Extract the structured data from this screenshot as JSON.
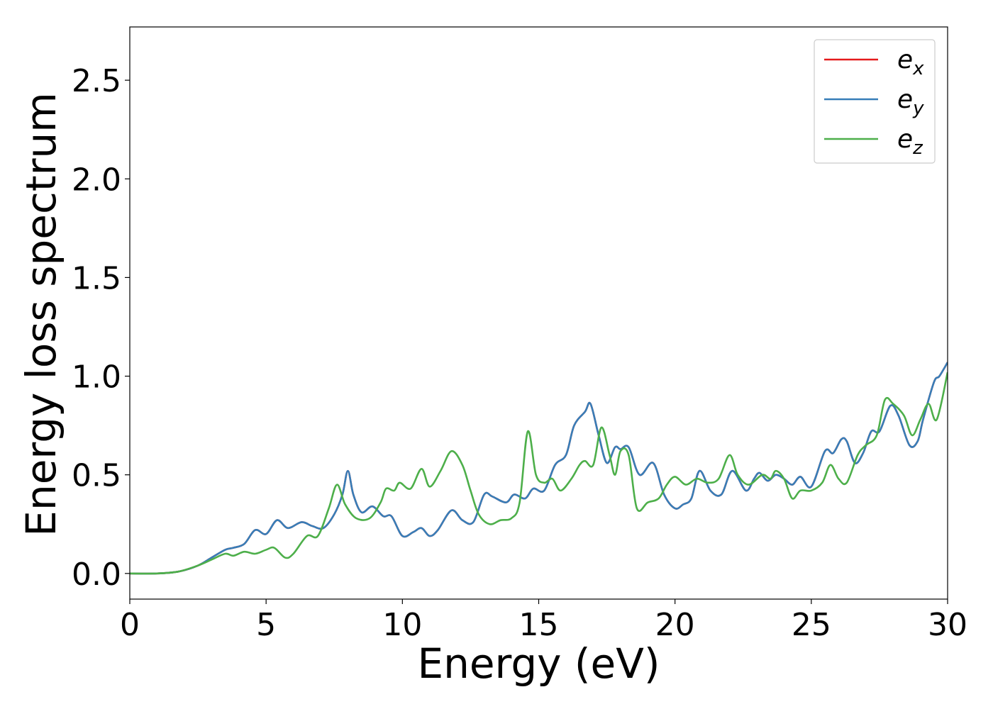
{
  "chart_data": {
    "type": "line",
    "xlabel": "Energy (eV)",
    "ylabel": "Energy loss spectrum",
    "xlim": [
      0,
      30
    ],
    "ylim": [
      -0.13,
      2.77
    ],
    "xticks": [
      0,
      5,
      10,
      15,
      20,
      25,
      30
    ],
    "xtick_labels": [
      "0",
      "5",
      "10",
      "15",
      "20",
      "25",
      "30"
    ],
    "yticks": [
      0.0,
      0.5,
      1.0,
      1.5,
      2.0,
      2.5
    ],
    "ytick_labels": [
      "0.0",
      "0.5",
      "1.0",
      "1.5",
      "2.0",
      "2.5"
    ],
    "grid": false,
    "legend_position": "top-right",
    "series": [
      {
        "name": "e_x",
        "label_base": "e",
        "label_sub": "x",
        "color": "#e41a1c",
        "x": [
          0,
          1,
          1.8,
          2.5,
          3,
          3.5,
          3.8,
          4.2,
          4.6,
          5,
          5.4,
          5.8,
          6.3,
          6.7,
          7.1,
          7.5,
          7.8,
          8,
          8.2,
          8.5,
          8.9,
          9.3,
          9.6,
          10,
          10.4,
          10.7,
          11,
          11.3,
          11.8,
          12.2,
          12.6,
          13,
          13.3,
          13.8,
          14.1,
          14.5,
          14.8,
          15.2,
          15.6,
          16,
          16.3,
          16.7,
          16.9,
          17.2,
          17.5,
          17.8,
          18,
          18.3,
          18.7,
          19.2,
          19.6,
          20,
          20.3,
          20.6,
          20.9,
          21.3,
          21.7,
          22.1,
          22.6,
          22.9,
          23.1,
          23.4,
          23.7,
          24,
          24.3,
          24.6,
          25,
          25.5,
          25.8,
          26.1,
          26.3,
          26.6,
          26.9,
          27.2,
          27.5,
          27.9,
          28.2,
          28.6,
          28.9,
          29.1,
          29.5,
          29.7,
          30
        ],
        "y": [
          0,
          0,
          0.01,
          0.04,
          0.08,
          0.12,
          0.13,
          0.15,
          0.22,
          0.2,
          0.27,
          0.23,
          0.26,
          0.24,
          0.23,
          0.3,
          0.4,
          0.52,
          0.4,
          0.31,
          0.34,
          0.29,
          0.29,
          0.19,
          0.21,
          0.23,
          0.19,
          0.22,
          0.32,
          0.27,
          0.26,
          0.4,
          0.39,
          0.36,
          0.4,
          0.38,
          0.43,
          0.42,
          0.55,
          0.6,
          0.75,
          0.82,
          0.86,
          0.7,
          0.56,
          0.64,
          0.63,
          0.64,
          0.5,
          0.56,
          0.4,
          0.33,
          0.35,
          0.38,
          0.52,
          0.42,
          0.4,
          0.52,
          0.42,
          0.48,
          0.51,
          0.47,
          0.5,
          0.48,
          0.45,
          0.49,
          0.44,
          0.62,
          0.61,
          0.68,
          0.67,
          0.56,
          0.61,
          0.72,
          0.72,
          0.85,
          0.8,
          0.65,
          0.67,
          0.78,
          0.97,
          1.0,
          1.07
        ]
      },
      {
        "name": "e_y",
        "label_base": "e",
        "label_sub": "y",
        "color": "#377eb8",
        "x": [
          0,
          1,
          1.8,
          2.5,
          3,
          3.5,
          3.8,
          4.2,
          4.6,
          5,
          5.4,
          5.8,
          6.3,
          6.7,
          7.1,
          7.5,
          7.8,
          8,
          8.2,
          8.5,
          8.9,
          9.3,
          9.6,
          10,
          10.4,
          10.7,
          11,
          11.3,
          11.8,
          12.2,
          12.6,
          13,
          13.3,
          13.8,
          14.1,
          14.5,
          14.8,
          15.2,
          15.6,
          16,
          16.3,
          16.7,
          16.9,
          17.2,
          17.5,
          17.8,
          18,
          18.3,
          18.7,
          19.2,
          19.6,
          20,
          20.3,
          20.6,
          20.9,
          21.3,
          21.7,
          22.1,
          22.6,
          22.9,
          23.1,
          23.4,
          23.7,
          24,
          24.3,
          24.6,
          25,
          25.5,
          25.8,
          26.1,
          26.3,
          26.6,
          26.9,
          27.2,
          27.5,
          27.9,
          28.2,
          28.6,
          28.9,
          29.1,
          29.5,
          29.7,
          30
        ],
        "y": [
          0,
          0,
          0.01,
          0.04,
          0.08,
          0.12,
          0.13,
          0.15,
          0.22,
          0.2,
          0.27,
          0.23,
          0.26,
          0.24,
          0.23,
          0.3,
          0.4,
          0.52,
          0.4,
          0.31,
          0.34,
          0.29,
          0.29,
          0.19,
          0.21,
          0.23,
          0.19,
          0.22,
          0.32,
          0.27,
          0.26,
          0.4,
          0.39,
          0.36,
          0.4,
          0.38,
          0.43,
          0.42,
          0.55,
          0.6,
          0.75,
          0.82,
          0.86,
          0.7,
          0.56,
          0.64,
          0.63,
          0.64,
          0.5,
          0.56,
          0.4,
          0.33,
          0.35,
          0.38,
          0.52,
          0.42,
          0.4,
          0.52,
          0.42,
          0.48,
          0.51,
          0.47,
          0.5,
          0.48,
          0.45,
          0.49,
          0.44,
          0.62,
          0.61,
          0.68,
          0.67,
          0.56,
          0.61,
          0.72,
          0.72,
          0.85,
          0.8,
          0.65,
          0.67,
          0.78,
          0.97,
          1.0,
          1.07
        ]
      },
      {
        "name": "e_z",
        "label_base": "e",
        "label_sub": "z",
        "color": "#4daf4a",
        "x": [
          0,
          1,
          1.8,
          2.5,
          3,
          3.5,
          3.8,
          4.2,
          4.6,
          5,
          5.3,
          5.7,
          6,
          6.5,
          6.9,
          7.3,
          7.6,
          7.9,
          8.3,
          8.8,
          9.2,
          9.4,
          9.7,
          9.9,
          10.3,
          10.7,
          11,
          11.4,
          11.8,
          12.2,
          12.5,
          12.8,
          13.2,
          13.6,
          14,
          14.3,
          14.6,
          14.9,
          15.2,
          15.5,
          15.8,
          16.2,
          16.5,
          16.7,
          17,
          17.3,
          17.6,
          17.8,
          18,
          18.3,
          18.6,
          19,
          19.4,
          19.7,
          20,
          20.4,
          20.8,
          21.2,
          21.6,
          22,
          22.3,
          22.7,
          23.2,
          23.5,
          23.7,
          24,
          24.3,
          24.6,
          25,
          25.4,
          25.7,
          26,
          26.3,
          26.7,
          27,
          27.4,
          27.7,
          28,
          28.4,
          28.7,
          29,
          29.3,
          29.6,
          30
        ],
        "y": [
          0,
          0,
          0.01,
          0.04,
          0.07,
          0.1,
          0.09,
          0.11,
          0.1,
          0.12,
          0.13,
          0.08,
          0.1,
          0.19,
          0.19,
          0.33,
          0.45,
          0.35,
          0.28,
          0.28,
          0.36,
          0.43,
          0.42,
          0.46,
          0.43,
          0.53,
          0.44,
          0.52,
          0.62,
          0.55,
          0.42,
          0.3,
          0.25,
          0.27,
          0.28,
          0.36,
          0.72,
          0.5,
          0.46,
          0.48,
          0.42,
          0.48,
          0.55,
          0.57,
          0.55,
          0.74,
          0.6,
          0.5,
          0.62,
          0.6,
          0.33,
          0.36,
          0.38,
          0.45,
          0.49,
          0.45,
          0.48,
          0.46,
          0.48,
          0.6,
          0.5,
          0.45,
          0.5,
          0.48,
          0.52,
          0.48,
          0.38,
          0.42,
          0.42,
          0.46,
          0.55,
          0.48,
          0.46,
          0.6,
          0.65,
          0.7,
          0.88,
          0.86,
          0.8,
          0.7,
          0.78,
          0.86,
          0.78,
          1.02
        ]
      }
    ]
  }
}
